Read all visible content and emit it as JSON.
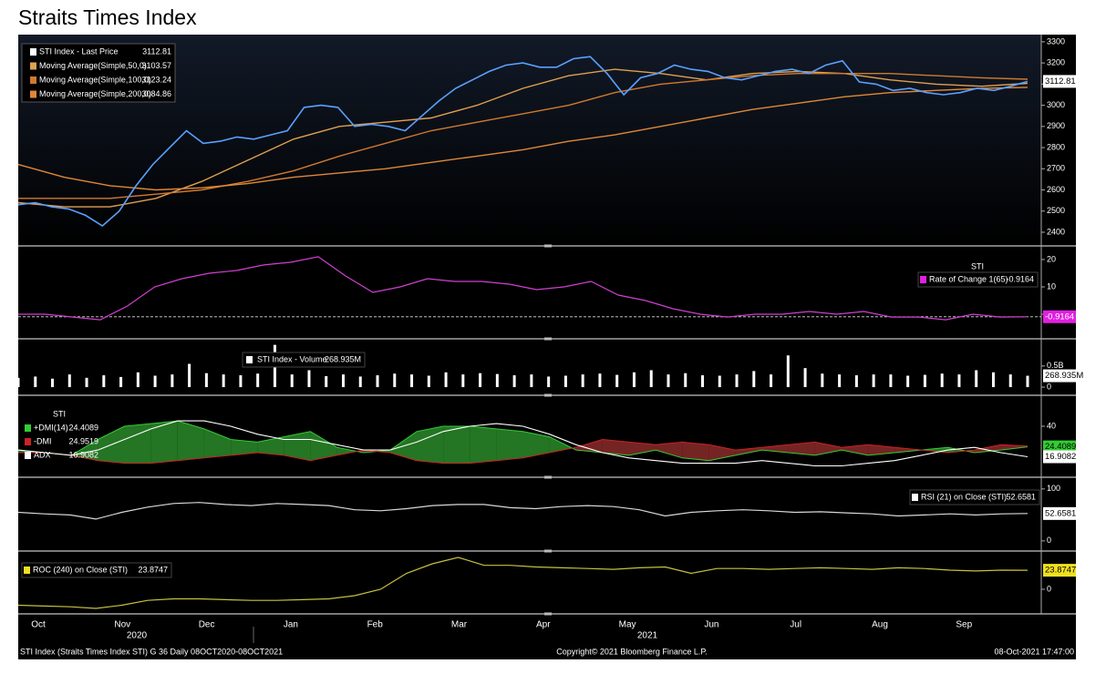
{
  "title": "Straits Times Index",
  "x_axis": {
    "months": [
      "Oct",
      "Nov",
      "Dec",
      "Jan",
      "Feb",
      "Mar",
      "Apr",
      "May",
      "Jun",
      "Jul",
      "Aug",
      "Sep"
    ],
    "years": [
      "2020",
      "2021"
    ]
  },
  "footer": {
    "left": "STI Index (Straits Times Index STI) G 36  Daily 08OCT2020-08OCT2021",
    "center": "Copyright© 2021 Bloomberg Finance L.P.",
    "right": "08-Oct-2021 17:47:00"
  },
  "chart_data": [
    {
      "type": "line",
      "ylim": [
        2344,
        3334
      ],
      "yticks": [
        2400,
        2500,
        2600,
        2700,
        2800,
        2900,
        3000,
        3100,
        3200,
        3300
      ],
      "series": [
        {
          "name": "STI Index - Last Price",
          "color": "#5aa0ff",
          "values": [
            2530,
            2540,
            2520,
            2510,
            2480,
            2430,
            2500,
            2620,
            2720,
            2800,
            2880,
            2820,
            2830,
            2850,
            2840,
            2860,
            2880,
            2990,
            3000,
            2990,
            2900,
            2910,
            2900,
            2880,
            2950,
            3020,
            3080,
            3120,
            3160,
            3190,
            3200,
            3180,
            3180,
            3220,
            3230,
            3150,
            3050,
            3130,
            3150,
            3190,
            3170,
            3160,
            3130,
            3120,
            3140,
            3160,
            3170,
            3150,
            3190,
            3210,
            3110,
            3100,
            3070,
            3080,
            3060,
            3050,
            3060,
            3080,
            3070,
            3090,
            3112.81
          ]
        },
        {
          "name": "Moving Average(Simple,50,0)",
          "color": "#e0a050",
          "values": [
            2540,
            2520,
            2520,
            2560,
            2640,
            2740,
            2840,
            2900,
            2920,
            2940,
            3000,
            3080,
            3140,
            3170,
            3150,
            3120,
            3150,
            3160,
            3150,
            3120,
            3100,
            3090,
            3103.57
          ]
        },
        {
          "name": "Moving Average(Simple,100,0)",
          "color": "#d07a30",
          "values": [
            2560,
            2560,
            2560,
            2580,
            2600,
            2640,
            2690,
            2760,
            2820,
            2880,
            2920,
            2960,
            3000,
            3060,
            3100,
            3120,
            3140,
            3150,
            3150,
            3150,
            3140,
            3130,
            3123.24
          ]
        },
        {
          "name": "Moving Average(Simple,200,0)",
          "color": "#e08838",
          "values": [
            2720,
            2660,
            2620,
            2600,
            2610,
            2630,
            2660,
            2680,
            2700,
            2730,
            2760,
            2790,
            2830,
            2860,
            2900,
            2940,
            2980,
            3010,
            3040,
            3060,
            3070,
            3080,
            3084.86
          ]
        }
      ]
    },
    {
      "type": "line",
      "title": "STI",
      "ylim": [
        -8.3,
        24.3
      ],
      "yticks": [
        0,
        10,
        20
      ],
      "series": [
        {
          "name": "Rate of Change 1(65)",
          "color": "#d040d0",
          "values": [
            0,
            0,
            -1,
            -2,
            3,
            10,
            13,
            15,
            16,
            18,
            19,
            21,
            14,
            8,
            10,
            13,
            12,
            12,
            11,
            9,
            10,
            12,
            7,
            5,
            2,
            0,
            -1,
            0,
            0,
            1,
            0,
            1,
            -1,
            -1,
            -2,
            0,
            -1,
            -0.9164
          ]
        }
      ]
    },
    {
      "type": "bar",
      "ylim": [
        -0.15,
        1.1
      ],
      "yticks": [
        0,
        {
          "value": 0.5,
          "label": "0.5B"
        }
      ],
      "series": [
        {
          "name": "STI Index - Volume",
          "color": "#ffffff",
          "last_label": "268.935M",
          "values": [
            0.22,
            0.25,
            0.2,
            0.3,
            0.22,
            0.28,
            0.24,
            0.35,
            0.27,
            0.3,
            0.55,
            0.33,
            0.3,
            0.28,
            0.32,
            1.0,
            0.3,
            0.4,
            0.26,
            0.3,
            0.25,
            0.28,
            0.32,
            0.3,
            0.27,
            0.35,
            0.3,
            0.33,
            0.31,
            0.28,
            0.3,
            0.25,
            0.27,
            0.3,
            0.32,
            0.29,
            0.35,
            0.4,
            0.3,
            0.33,
            0.28,
            0.27,
            0.3,
            0.38,
            0.3,
            0.75,
            0.45,
            0.32,
            0.3,
            0.28,
            0.3,
            0.3,
            0.27,
            0.29,
            0.32,
            0.3,
            0.4,
            0.35,
            0.3,
            0.268935
          ]
        }
      ]
    },
    {
      "type": "dmi",
      "title": "STI",
      "ylim": [
        2.8,
        62
      ],
      "yticks": [
        40
      ],
      "series": [
        {
          "name": "+DMI(14)",
          "color": "#33cc33",
          "values": [
            22,
            20,
            18,
            30,
            40,
            42,
            44,
            38,
            30,
            28,
            32,
            36,
            24,
            20,
            22,
            36,
            40,
            40,
            38,
            36,
            32,
            22,
            20,
            18,
            22,
            16,
            14,
            18,
            22,
            20,
            18,
            22,
            18,
            20,
            22,
            24,
            20,
            22,
            24.4089
          ]
        },
        {
          "name": "-DMI",
          "color": "#cc2222",
          "values": [
            20,
            20,
            18,
            14,
            12,
            12,
            14,
            16,
            18,
            20,
            18,
            14,
            18,
            22,
            20,
            14,
            12,
            12,
            14,
            16,
            20,
            24,
            30,
            28,
            26,
            28,
            26,
            22,
            24,
            26,
            28,
            24,
            26,
            24,
            22,
            20,
            22,
            26,
            24.9519
          ]
        },
        {
          "name": "ADX",
          "color": "#ffffff",
          "values": [
            22,
            20,
            18,
            22,
            30,
            38,
            44,
            44,
            40,
            34,
            30,
            30,
            26,
            22,
            22,
            28,
            36,
            40,
            42,
            40,
            34,
            26,
            20,
            16,
            14,
            12,
            12,
            12,
            14,
            12,
            10,
            10,
            12,
            14,
            18,
            22,
            24,
            20,
            16.9082
          ]
        }
      ]
    },
    {
      "type": "line",
      "ylim": [
        -16,
        119
      ],
      "yticks": [
        0,
        100
      ],
      "series": [
        {
          "name": "RSI (21)  on Close (STI)",
          "color": "#d8d8d8",
          "values": [
            55,
            52,
            50,
            42,
            55,
            65,
            72,
            74,
            70,
            68,
            72,
            70,
            68,
            60,
            58,
            62,
            68,
            70,
            70,
            64,
            62,
            66,
            68,
            66,
            60,
            48,
            55,
            58,
            60,
            58,
            55,
            56,
            54,
            52,
            48,
            50,
            52,
            50,
            52,
            52.6581
          ]
        }
      ]
    },
    {
      "type": "line",
      "ylim": [
        -28.6,
        45.7
      ],
      "yticks": [
        0
      ],
      "series": [
        {
          "name": "ROC (240)  on Close (STI)",
          "color": "#c8c040",
          "values": [
            -20,
            -21,
            -22,
            -24,
            -20,
            -14,
            -12,
            -12,
            -13,
            -14,
            -14,
            -13,
            -12,
            -8,
            0,
            20,
            32,
            40,
            30,
            30,
            28,
            27,
            26,
            25,
            27,
            28,
            20,
            26,
            26,
            25,
            26,
            27,
            26,
            25,
            27,
            26,
            24,
            23,
            24,
            23.8747
          ]
        }
      ]
    }
  ]
}
